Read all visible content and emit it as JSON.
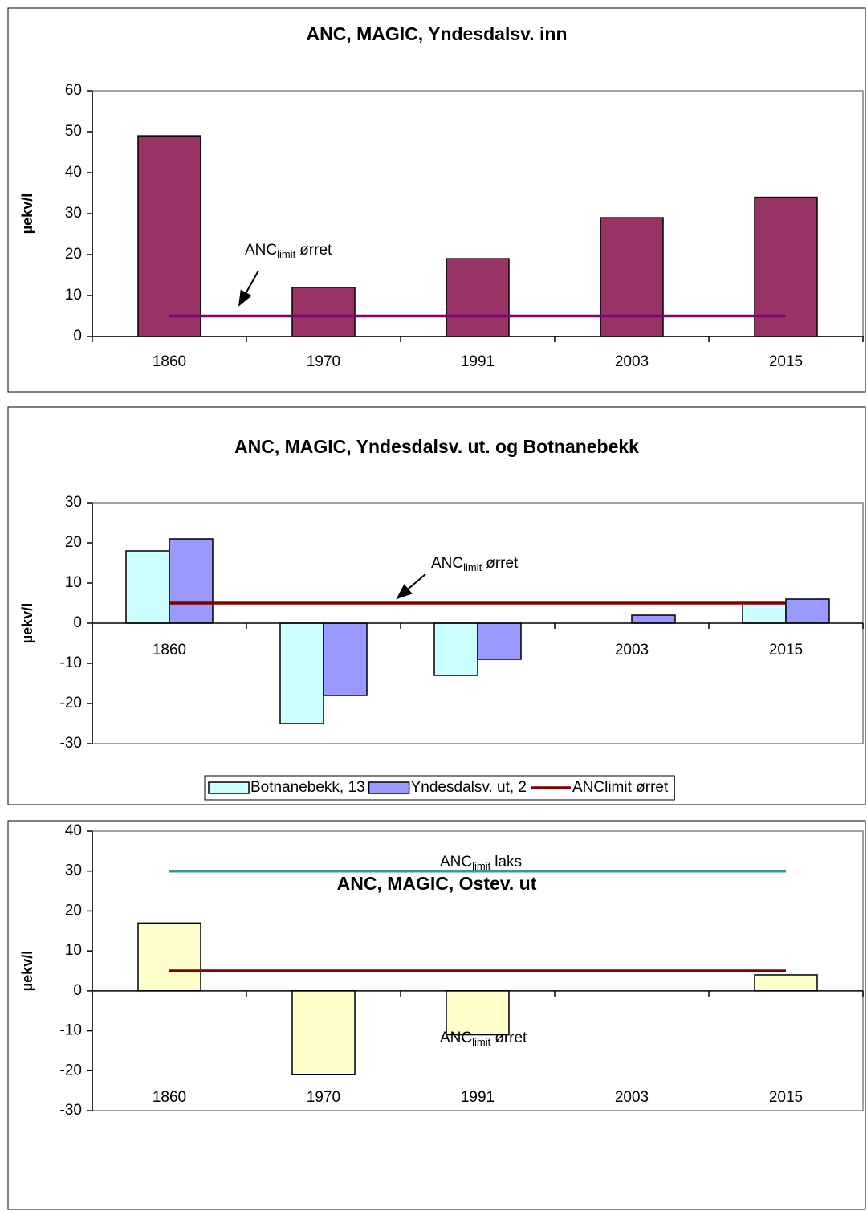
{
  "chart_data": [
    {
      "type": "bar",
      "title": "ANC, MAGIC, Yndesdalsv. inn",
      "y_label": "µekv/l",
      "categories": [
        "1860",
        "1970",
        "1991",
        "2003",
        "2015"
      ],
      "series": [
        {
          "kind": "bar",
          "color": "#993366",
          "values": [
            49,
            12,
            19,
            29,
            34
          ]
        },
        {
          "kind": "line",
          "color": "#800080",
          "values": [
            5,
            5,
            5,
            5,
            5
          ]
        }
      ],
      "ylim": [
        0,
        60
      ],
      "yticks": [
        0,
        10,
        20,
        30,
        40,
        50,
        60
      ],
      "annotations": [
        {
          "text": "ANC",
          "sub": "limit",
          "rest": "ørret"
        }
      ]
    },
    {
      "type": "bar",
      "title": "ANC, MAGIC, Yndesdalsv. ut. og Botnanebekk",
      "y_label": "µekv/l",
      "categories": [
        "1860",
        "1970",
        "1991",
        "2003",
        "2015"
      ],
      "series": [
        {
          "kind": "bar",
          "name": "Botnanebekk, 13",
          "color": "#CCFFFF",
          "values": [
            18,
            -25,
            -13,
            0,
            5
          ]
        },
        {
          "kind": "bar",
          "name": "Yndesdalsv. ut, 2",
          "color": "#9999FF",
          "values": [
            21,
            -18,
            -9,
            2,
            6
          ]
        },
        {
          "kind": "line",
          "name": "ANClimit ørret",
          "color": "#800000",
          "values": [
            5,
            5,
            5,
            5,
            5
          ]
        }
      ],
      "ylim": [
        -30,
        30
      ],
      "yticks": [
        -30,
        -20,
        -10,
        0,
        10,
        20,
        30
      ],
      "legend": "bottom",
      "annotations": [
        {
          "text": "ANC",
          "sub": "limit",
          "rest": "ørret"
        }
      ]
    },
    {
      "type": "bar",
      "title": "ANC, MAGIC, Ostev. ut",
      "y_label": "µekv/l",
      "categories": [
        "1860",
        "1970",
        "1991",
        "2003",
        "2015"
      ],
      "series": [
        {
          "kind": "bar",
          "color": "#FFFFCC",
          "values": [
            17,
            -21,
            -11,
            0,
            4
          ]
        },
        {
          "kind": "line",
          "color": "#339999",
          "values": [
            30,
            30,
            30,
            30,
            30
          ]
        },
        {
          "kind": "line",
          "color": "#800000",
          "values": [
            5,
            5,
            5,
            5,
            5
          ]
        }
      ],
      "ylim": [
        -30,
        40
      ],
      "yticks": [
        -30,
        -20,
        -10,
        0,
        10,
        20,
        30,
        40
      ],
      "annotations": [
        {
          "text": "ANC",
          "sub": "limit",
          "rest": "laks"
        },
        {
          "text": "ANC",
          "sub": "limit",
          "rest": "ørret"
        }
      ]
    }
  ]
}
